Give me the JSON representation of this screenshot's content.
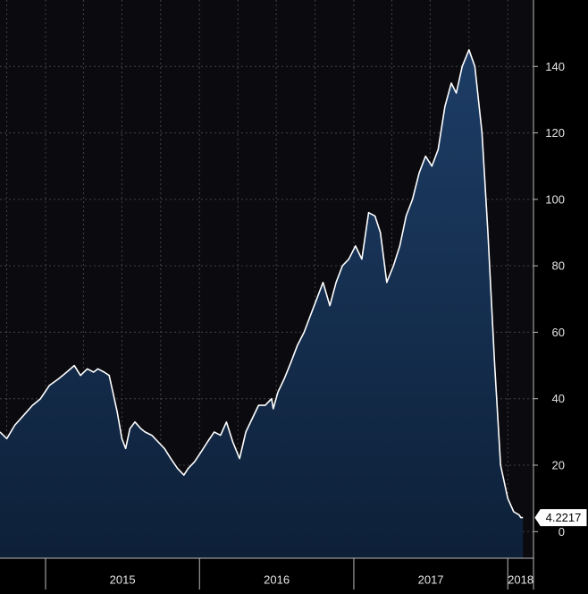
{
  "chart_data": {
    "type": "area",
    "title": "",
    "xlabel": "",
    "ylabel": "",
    "ylim": [
      -8,
      160
    ],
    "y_ticks": [
      0,
      20,
      40,
      60,
      80,
      100,
      120,
      140
    ],
    "y_tick_labels": [
      "0",
      "20",
      "40",
      "60",
      "80",
      "100",
      "120",
      "140"
    ],
    "x_ticks": [
      "2015",
      "2016",
      "2017",
      "2018"
    ],
    "grid": true,
    "legend": "none",
    "last_value_label": "4.2217",
    "colors": {
      "background": "#000000",
      "plot_background": "#0a0a0f",
      "fill_top": "#1d3d66",
      "fill_bottom": "#0d2038",
      "line": "#ffffff",
      "grid": "#444444",
      "axis_text": "#e6e6e6"
    },
    "series": [
      {
        "x": [
          "2014-09-15",
          "2014-10-01",
          "2014-10-20",
          "2014-11-10",
          "2014-12-01",
          "2014-12-20",
          "2015-01-10",
          "2015-02-01",
          "2015-02-20",
          "2015-03-10",
          "2015-03-25",
          "2015-04-10",
          "2015-04-25",
          "2015-05-05",
          "2015-05-20",
          "2015-06-01",
          "2015-06-20",
          "2015-07-01",
          "2015-07-10",
          "2015-07-20",
          "2015-08-01",
          "2015-08-15",
          "2015-08-25",
          "2015-09-10",
          "2015-09-25",
          "2015-10-10",
          "2015-10-25",
          "2015-11-10",
          "2015-11-25",
          "2015-12-05",
          "2015-12-20",
          "2016-01-05",
          "2016-01-20",
          "2016-02-05",
          "2016-02-20",
          "2016-03-05",
          "2016-03-20",
          "2016-04-05",
          "2016-04-20",
          "2016-05-05",
          "2016-05-20",
          "2016-06-05",
          "2016-06-20",
          "2016-06-24",
          "2016-07-05",
          "2016-07-20",
          "2016-08-05",
          "2016-08-20",
          "2016-09-05",
          "2016-09-20",
          "2016-10-05",
          "2016-10-20",
          "2016-11-05",
          "2016-11-20",
          "2016-12-05",
          "2016-12-20",
          "2017-01-05",
          "2017-01-20",
          "2017-02-05",
          "2017-02-20",
          "2017-03-05",
          "2017-03-20",
          "2017-04-05",
          "2017-04-20",
          "2017-05-05",
          "2017-05-20",
          "2017-06-05",
          "2017-06-20",
          "2017-07-05",
          "2017-07-20",
          "2017-08-05",
          "2017-08-20",
          "2017-09-01",
          "2017-09-15",
          "2017-10-01",
          "2017-10-15",
          "2017-11-01",
          "2017-11-15",
          "2017-12-01",
          "2017-12-15",
          "2018-01-01",
          "2018-01-15",
          "2018-01-28",
          "2018-02-01",
          "2018-02-05",
          "2018-02-06"
        ],
        "y": [
          30,
          28,
          32,
          35,
          38,
          40,
          44,
          46,
          48,
          50,
          47,
          49,
          48,
          49,
          48,
          47,
          36,
          28,
          25,
          31,
          33,
          31,
          30,
          29,
          27,
          25,
          22,
          19,
          17,
          19,
          21,
          24,
          27,
          30,
          29,
          33,
          27,
          22,
          30,
          34,
          38,
          38,
          40,
          37,
          42,
          46,
          51,
          56,
          60,
          65,
          70,
          75,
          68,
          75,
          80,
          82,
          86,
          82,
          96,
          95,
          90,
          75,
          80,
          86,
          95,
          100,
          108,
          113,
          110,
          115,
          128,
          135,
          132,
          140,
          145,
          140,
          120,
          90,
          50,
          20,
          10,
          6,
          5,
          4.2217,
          4.2217,
          4.2217
        ]
      }
    ]
  }
}
